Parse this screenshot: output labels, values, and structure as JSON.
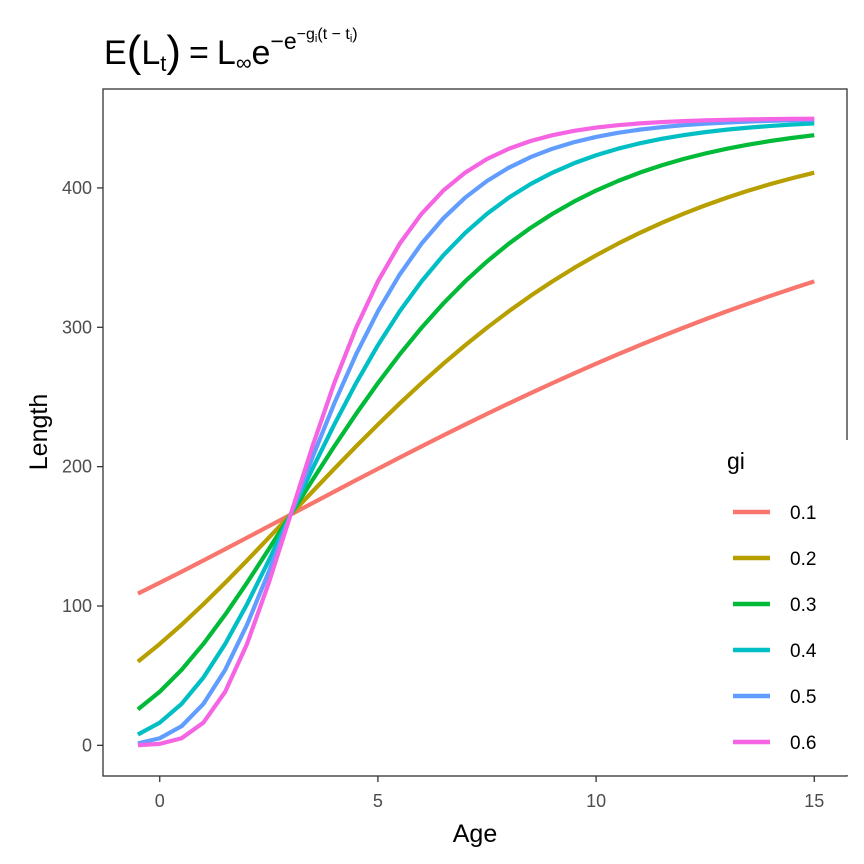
{
  "chart_data": {
    "type": "line",
    "title": {
      "E": "E",
      "L": "L",
      "t_sub": "t",
      "equals": "=",
      "Linf_L": "L",
      "inf_sub": "∞",
      "e1": "e",
      "neg1": "−",
      "e2": "e",
      "neg2": "−",
      "g": "g",
      "i_sub": "i",
      "t_minus": "(t − t",
      "ti_sub": "i",
      "close": ")"
    },
    "xlabel": "Age",
    "ylabel": "Length",
    "xlim": [
      -1.3,
      15.75
    ],
    "ylim": [
      -22,
      471
    ],
    "x_ticks": [
      0,
      5,
      10,
      15
    ],
    "y_ticks": [
      0,
      100,
      200,
      300,
      400
    ],
    "legend_title": "gi",
    "legend_position": "right",
    "grid": false,
    "model": {
      "Linf": 450,
      "ti": 3
    },
    "x": [
      -0.5,
      0,
      0.5,
      1,
      1.5,
      2,
      2.5,
      3,
      3.5,
      4,
      4.5,
      5,
      5.5,
      6,
      6.5,
      7,
      7.5,
      8,
      8.5,
      9,
      9.5,
      10,
      10.5,
      11,
      11.5,
      12,
      12.5,
      13,
      13.5,
      14,
      14.5,
      15
    ],
    "series": [
      {
        "name": "0.1",
        "gi": 0.1,
        "color": "#F8766D"
      },
      {
        "name": "0.2",
        "gi": 0.2,
        "color": "#B79F00"
      },
      {
        "name": "0.3",
        "gi": 0.3,
        "color": "#00BA38"
      },
      {
        "name": "0.4",
        "gi": 0.4,
        "color": "#00BFC4"
      },
      {
        "name": "0.5",
        "gi": 0.5,
        "color": "#619CFF"
      },
      {
        "name": "0.6",
        "gi": 0.6,
        "color": "#F564E3"
      }
    ]
  }
}
